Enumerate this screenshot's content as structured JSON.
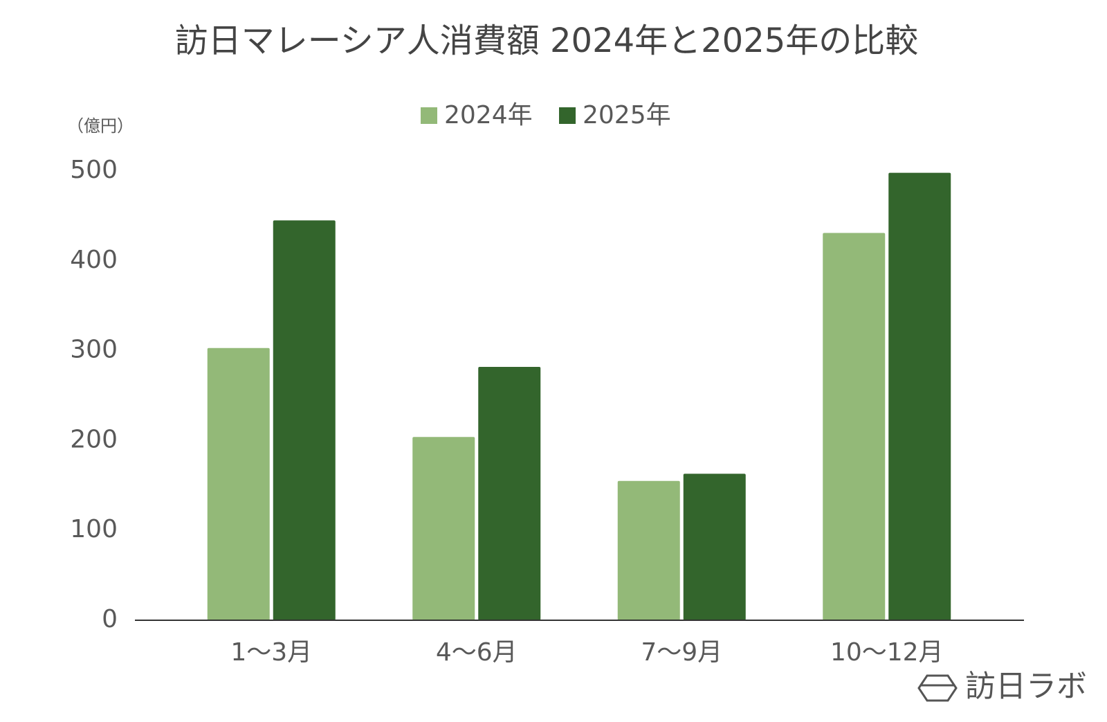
{
  "chart_data": {
    "type": "bar",
    "title": "訪日マレーシア人消費額 2024年と2025年の比較",
    "y_label": "（億円）",
    "categories": [
      "1〜3月",
      "4〜6月",
      "7〜9月",
      "10〜12月"
    ],
    "series": [
      {
        "name": "2024年",
        "color": "#93b978",
        "values": [
          303,
          204,
          155,
          431
        ]
      },
      {
        "name": "2025年",
        "color": "#33652c",
        "values": [
          445,
          282,
          163,
          498
        ]
      }
    ],
    "ylim": [
      0,
      500
    ],
    "yticks": [
      0,
      100,
      200,
      300,
      400,
      500
    ],
    "grid": false,
    "legend": "top",
    "watermark": "訪日ラボ"
  }
}
